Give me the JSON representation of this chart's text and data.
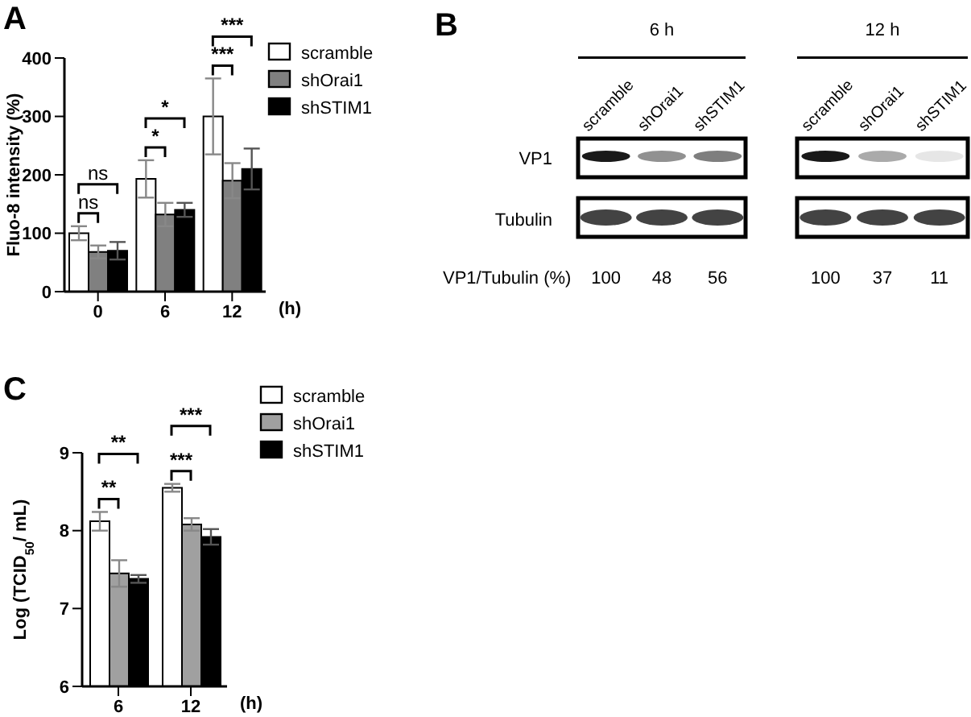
{
  "chart_data": [
    {
      "type": "bar",
      "title": "A",
      "categories": [
        "0",
        "6",
        "12"
      ],
      "xlabel": "(h)",
      "ylabel": "Fluo-8 intensity (%)",
      "ylim": [
        0,
        400
      ],
      "yticks": [
        0,
        100,
        200,
        300,
        400
      ],
      "legend": "top right",
      "series": [
        {
          "name": "scramble",
          "color": "#ffffff",
          "values": [
            100,
            193,
            300
          ],
          "errors": [
            12,
            32,
            65
          ]
        },
        {
          "name": "shOrai1",
          "color": "#808080",
          "values": [
            68,
            132,
            190
          ],
          "errors": [
            11,
            20,
            30
          ]
        },
        {
          "name": "shSTIM1",
          "color": "#000000",
          "values": [
            70,
            140,
            210
          ],
          "errors": [
            15,
            12,
            35
          ]
        }
      ],
      "annotations": [
        "ns",
        "ns",
        "*",
        "*",
        "***",
        "***"
      ]
    },
    {
      "type": "other",
      "title": "B",
      "categories": [
        "scramble",
        "shOrai1",
        "shSTIM1",
        "scramble",
        "shOrai1",
        "shSTIM1"
      ],
      "values": [
        100,
        48,
        56,
        100,
        37,
        11
      ],
      "data_labels": true,
      "ylabel": "VP1/Tubulin (%)",
      "annotations": [
        "6 h",
        "12 h",
        "VP1",
        "Tubulin"
      ]
    },
    {
      "type": "bar",
      "title": "C",
      "categories": [
        "6",
        "12"
      ],
      "xlabel": "(h)",
      "ylabel": "Log (TCID$_{50}$/ mL)",
      "ylim": [
        6,
        9
      ],
      "yticks": [
        6,
        7,
        8,
        9
      ],
      "legend": "top right",
      "series": [
        {
          "name": "scramble",
          "color": "#ffffff",
          "values": [
            8.12,
            8.55
          ],
          "errors": [
            0.12,
            0.05
          ]
        },
        {
          "name": "shOrai1",
          "color": "#a0a0a0",
          "values": [
            7.45,
            8.08
          ],
          "errors": [
            0.17,
            0.08
          ]
        },
        {
          "name": "shSTIM1",
          "color": "#000000",
          "values": [
            7.38,
            7.92
          ],
          "errors": [
            0.05,
            0.1
          ]
        }
      ],
      "annotations": [
        "**",
        "**",
        "***",
        "***"
      ]
    }
  ]
}
